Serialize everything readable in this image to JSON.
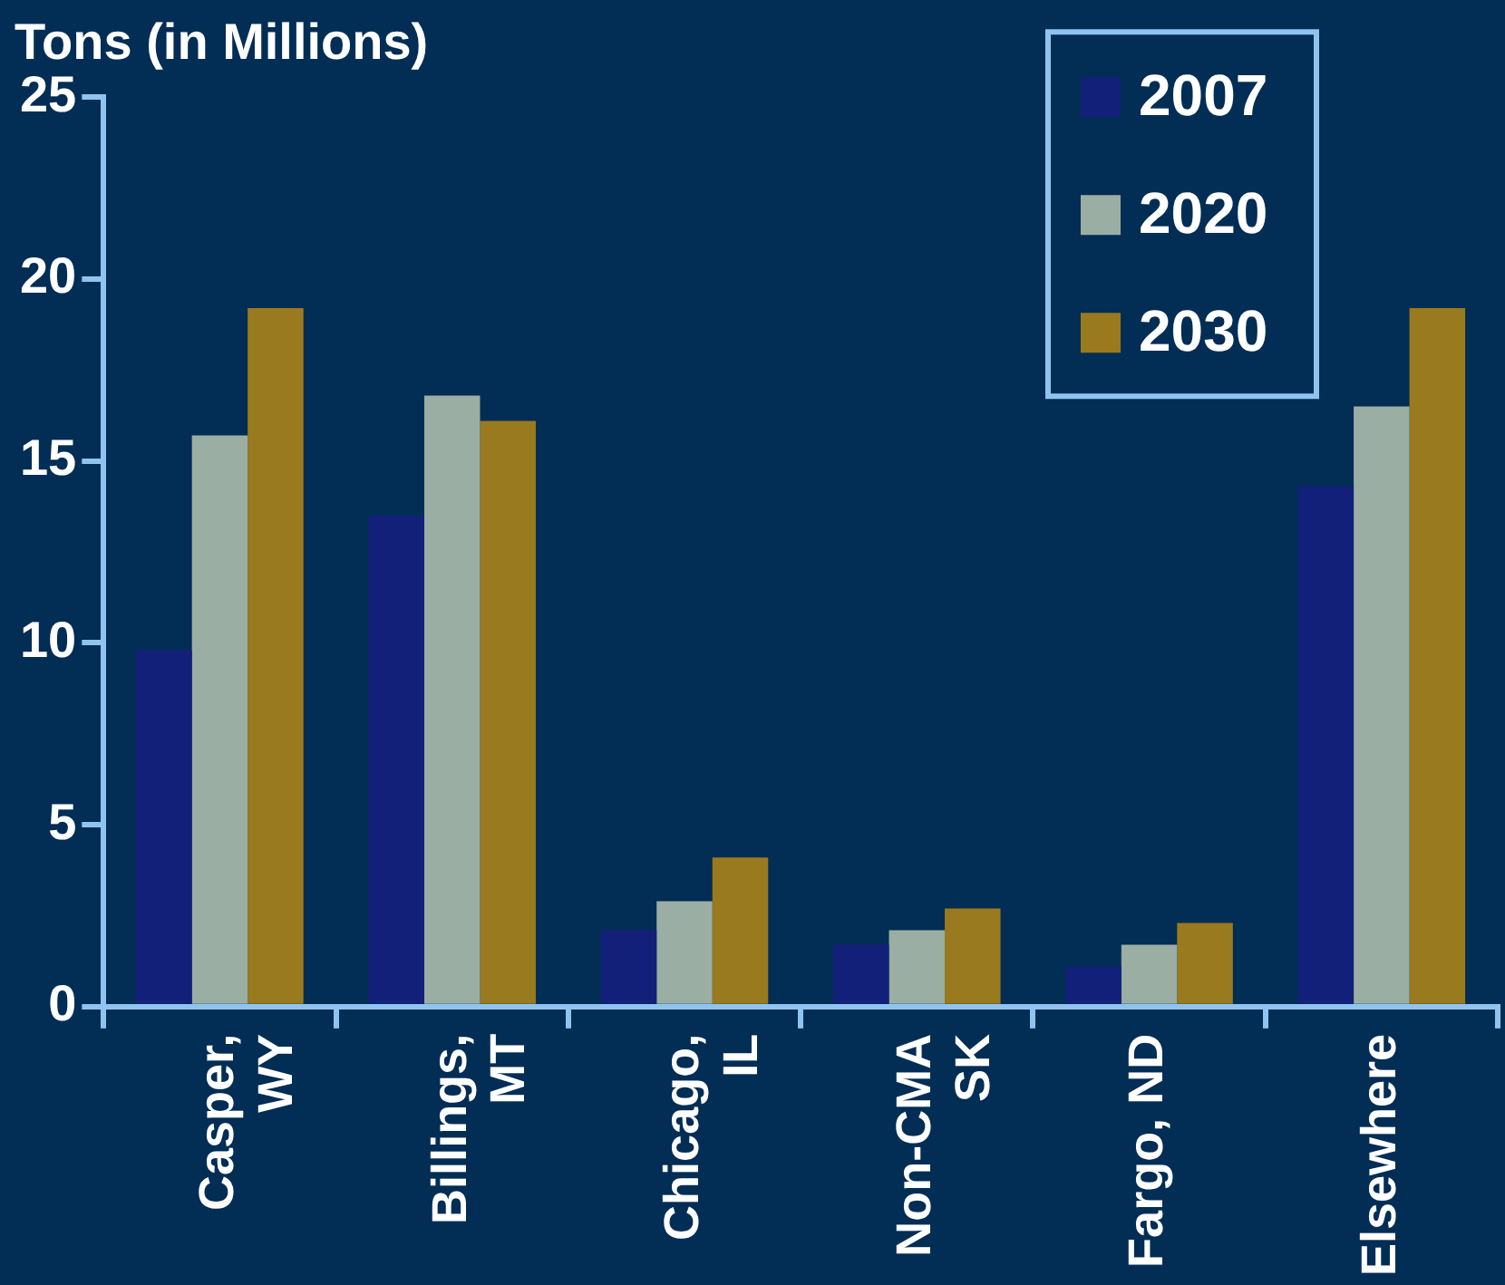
{
  "chart_data": {
    "type": "bar",
    "ylabel": "Tons (in Millions)",
    "categories": [
      "Casper,\nWY",
      "Billings,\nMT",
      "Chicago,\nIL",
      "Non-CMA\nSK",
      "Fargo, ND",
      "Elsewhere"
    ],
    "series": [
      {
        "name": "2007",
        "color": "#13207a",
        "values": [
          9.8,
          13.5,
          2.1,
          1.7,
          1.1,
          14.3
        ]
      },
      {
        "name": "2020",
        "color": "#9aaea3",
        "values": [
          15.7,
          16.8,
          2.9,
          2.1,
          1.7,
          16.5
        ]
      },
      {
        "name": "2030",
        "color": "#9a7a1e",
        "values": [
          19.2,
          16.1,
          4.1,
          2.7,
          2.3,
          19.2
        ]
      }
    ],
    "ylim": [
      0,
      25
    ],
    "yticks": [
      0,
      5,
      10,
      15,
      20,
      25
    ],
    "grid": false,
    "legend": "top right"
  }
}
